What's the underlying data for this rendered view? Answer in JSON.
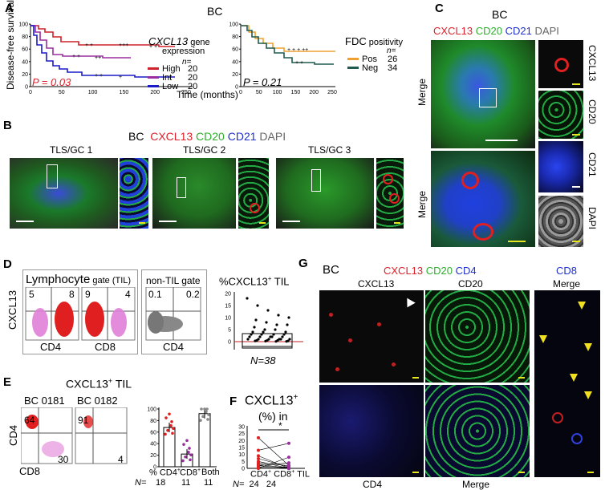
{
  "panelA": {
    "letter": "A",
    "title": "BC",
    "ylabel": "Disease-free survival",
    "xlabel": "Time (months)",
    "km1": {
      "legend_gene": "CXCL13",
      "legend_rest": " gene",
      "legend_line2": "expression",
      "n_label": "n=",
      "groups": [
        {
          "name": "High",
          "n": "20",
          "color": "#d0202a"
        },
        {
          "name": "Int",
          "n": "20",
          "color": "#9a2ea0"
        },
        {
          "name": "Low",
          "n": "20",
          "color": "#1a1ac8"
        }
      ],
      "pvalue": "P = 0.03",
      "pcolor": "#e0202a"
    },
    "km2": {
      "legend_main": "FDC",
      "legend_small": " positivity",
      "n_label": "n=",
      "groups": [
        {
          "name": "Pos",
          "n": "26",
          "color": "#f0a030"
        },
        {
          "name": "Neg",
          "n": "34",
          "color": "#1f5a50"
        }
      ],
      "pvalue": "P = 0.21"
    },
    "yticks": [
      "100",
      "80",
      "60",
      "40",
      "20",
      "0"
    ],
    "xticks": [
      "0",
      "50",
      "100",
      "150",
      "200",
      "250"
    ]
  },
  "panelB": {
    "letter": "B",
    "bc": "BC",
    "stains": [
      "CXCL13",
      "CD20",
      "CD21",
      "DAPI"
    ],
    "images": [
      "TLS/GC 1",
      "TLS/GC 2",
      "TLS/GC 3"
    ]
  },
  "panelC": {
    "letter": "C",
    "bc": "BC",
    "stains": [
      "CXCL13",
      "CD20",
      "CD21",
      "DAPI"
    ],
    "merge": "Merge",
    "side": [
      "CXCL13",
      "CD20",
      "CD21",
      "DAPI"
    ]
  },
  "panelD": {
    "letter": "D",
    "lymph_main": "Lymphocyte",
    "lymph_small": " gate (TIL)",
    "nontil": "non-TIL gate",
    "ylabel": "CXCL13",
    "x1": "CD4",
    "x2": "CD8",
    "x3": "CD4",
    "q1": [
      "5",
      "8"
    ],
    "q2": [
      "9",
      "4"
    ],
    "q3": [
      "0.1",
      "0.2"
    ],
    "pct_title": "%CXCL13",
    "pct_sup": "+",
    "pct_title_end": " TIL",
    "yticks": [
      "20",
      "15",
      "10",
      "5",
      "0"
    ],
    "n_label": "N=38"
  },
  "panelE": {
    "letter": "E",
    "title": "CXCL13",
    "sup": "+",
    "title_end": " TIL",
    "s1": "BC 0181",
    "s2": "BC 0182",
    "ylabel": "CD4",
    "xlabel": "CD8",
    "q1": [
      "64",
      "30"
    ],
    "q2": [
      "91",
      "4"
    ],
    "yticks": [
      "100",
      "80",
      "60",
      "40",
      "20",
      "0"
    ],
    "chart_data": {
      "type": "bar",
      "categories": [
        "% CD4+",
        "CD8+",
        "Both"
      ],
      "values": [
        68,
        22,
        92
      ],
      "ylim": [
        0,
        100
      ]
    },
    "cat_labels": [
      "% CD4",
      "CD8",
      "Both"
    ],
    "n_prefix": "N=",
    "ns": [
      "18",
      "11",
      "11"
    ]
  },
  "panelF": {
    "letter": "F",
    "title": "CXCL13",
    "sup": "+",
    "sub": "(%) in",
    "star": "*",
    "yticks": [
      "30",
      "25",
      "20",
      "15",
      "10",
      "5",
      "0"
    ],
    "xl1": "CD4",
    "xl2": "CD8",
    "xl3": " TIL",
    "n_prefix": "N=",
    "n1": "24",
    "n2": "24"
  },
  "panelG": {
    "letter": "G",
    "bc": "BC",
    "stains": [
      "CXCL13",
      "CD20",
      "CD4"
    ],
    "cd8": "CD8",
    "col_labels": [
      "CXCL13",
      "CD20",
      "Merge"
    ],
    "bottom_labels": [
      "CD4",
      "Merge"
    ]
  }
}
